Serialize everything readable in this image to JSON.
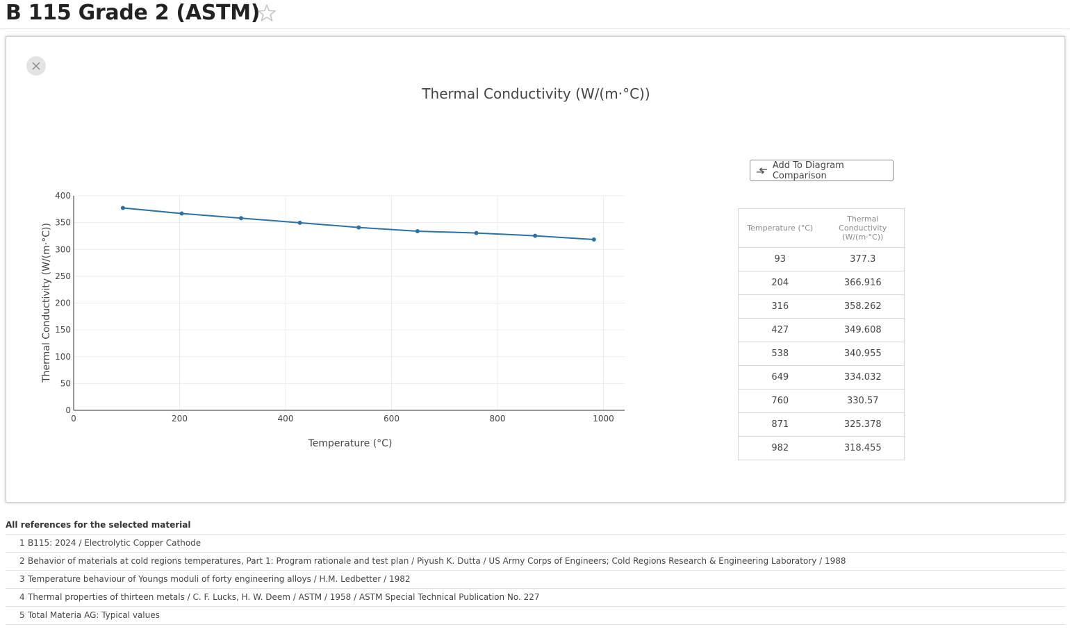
{
  "header": {
    "title": "B 115 Grade 2 (ASTM)",
    "star_icon": "star-outline-icon"
  },
  "panel": {
    "close_icon": "close-icon",
    "compare_button_label": "Add To Diagram Comparison",
    "compare_icon": "compare-arrows-icon"
  },
  "chart_data": {
    "type": "line",
    "title": "Thermal Conductivity (W/(m·°C))",
    "xlabel": "Temperature (°C)",
    "ylabel": "Thermal Conductivity (W/(m·°C))",
    "xlim": [
      0,
      1040
    ],
    "ylim": [
      0,
      400
    ],
    "x_ticks": [
      0,
      200,
      400,
      600,
      800,
      1000
    ],
    "y_ticks": [
      0,
      50,
      100,
      150,
      200,
      250,
      300,
      350,
      400
    ],
    "grid": true,
    "legend": "none",
    "color": "#2872a8",
    "x": [
      93,
      204,
      316,
      427,
      538,
      649,
      760,
      871,
      982
    ],
    "y": [
      377.3,
      366.916,
      358.262,
      349.608,
      340.955,
      334.032,
      330.57,
      325.378,
      318.455
    ]
  },
  "table": {
    "col1_header": "Temperature (°C)",
    "col2_header": "Thermal Conductivity (W/(m·°C))",
    "rows": [
      [
        "93",
        "377.3"
      ],
      [
        "204",
        "366.916"
      ],
      [
        "316",
        "358.262"
      ],
      [
        "427",
        "349.608"
      ],
      [
        "538",
        "340.955"
      ],
      [
        "649",
        "334.032"
      ],
      [
        "760",
        "330.57"
      ],
      [
        "871",
        "325.378"
      ],
      [
        "982",
        "318.455"
      ]
    ]
  },
  "references": {
    "title": "All references for the selected material",
    "items": [
      {
        "num": "1",
        "text": "B115: 2024 / Electrolytic Copper Cathode"
      },
      {
        "num": "2",
        "text": "Behavior of materials at cold regions temperatures, Part 1: Program rationale and test plan / Piyush K. Dutta / US Army Corps of Engineers; Cold Regions Research & Engineering Laboratory / 1988"
      },
      {
        "num": "3",
        "text": "Temperature behaviour of Youngs moduli of forty engineering alloys / H.M. Ledbetter / 1982"
      },
      {
        "num": "4",
        "text": "Thermal properties of thirteen metals / C. F. Lucks, H. W. Deem / ASTM / 1958 / ASTM Special Technical Publication No. 227"
      },
      {
        "num": "5",
        "text": "Total Materia AG: Typical values"
      }
    ]
  }
}
